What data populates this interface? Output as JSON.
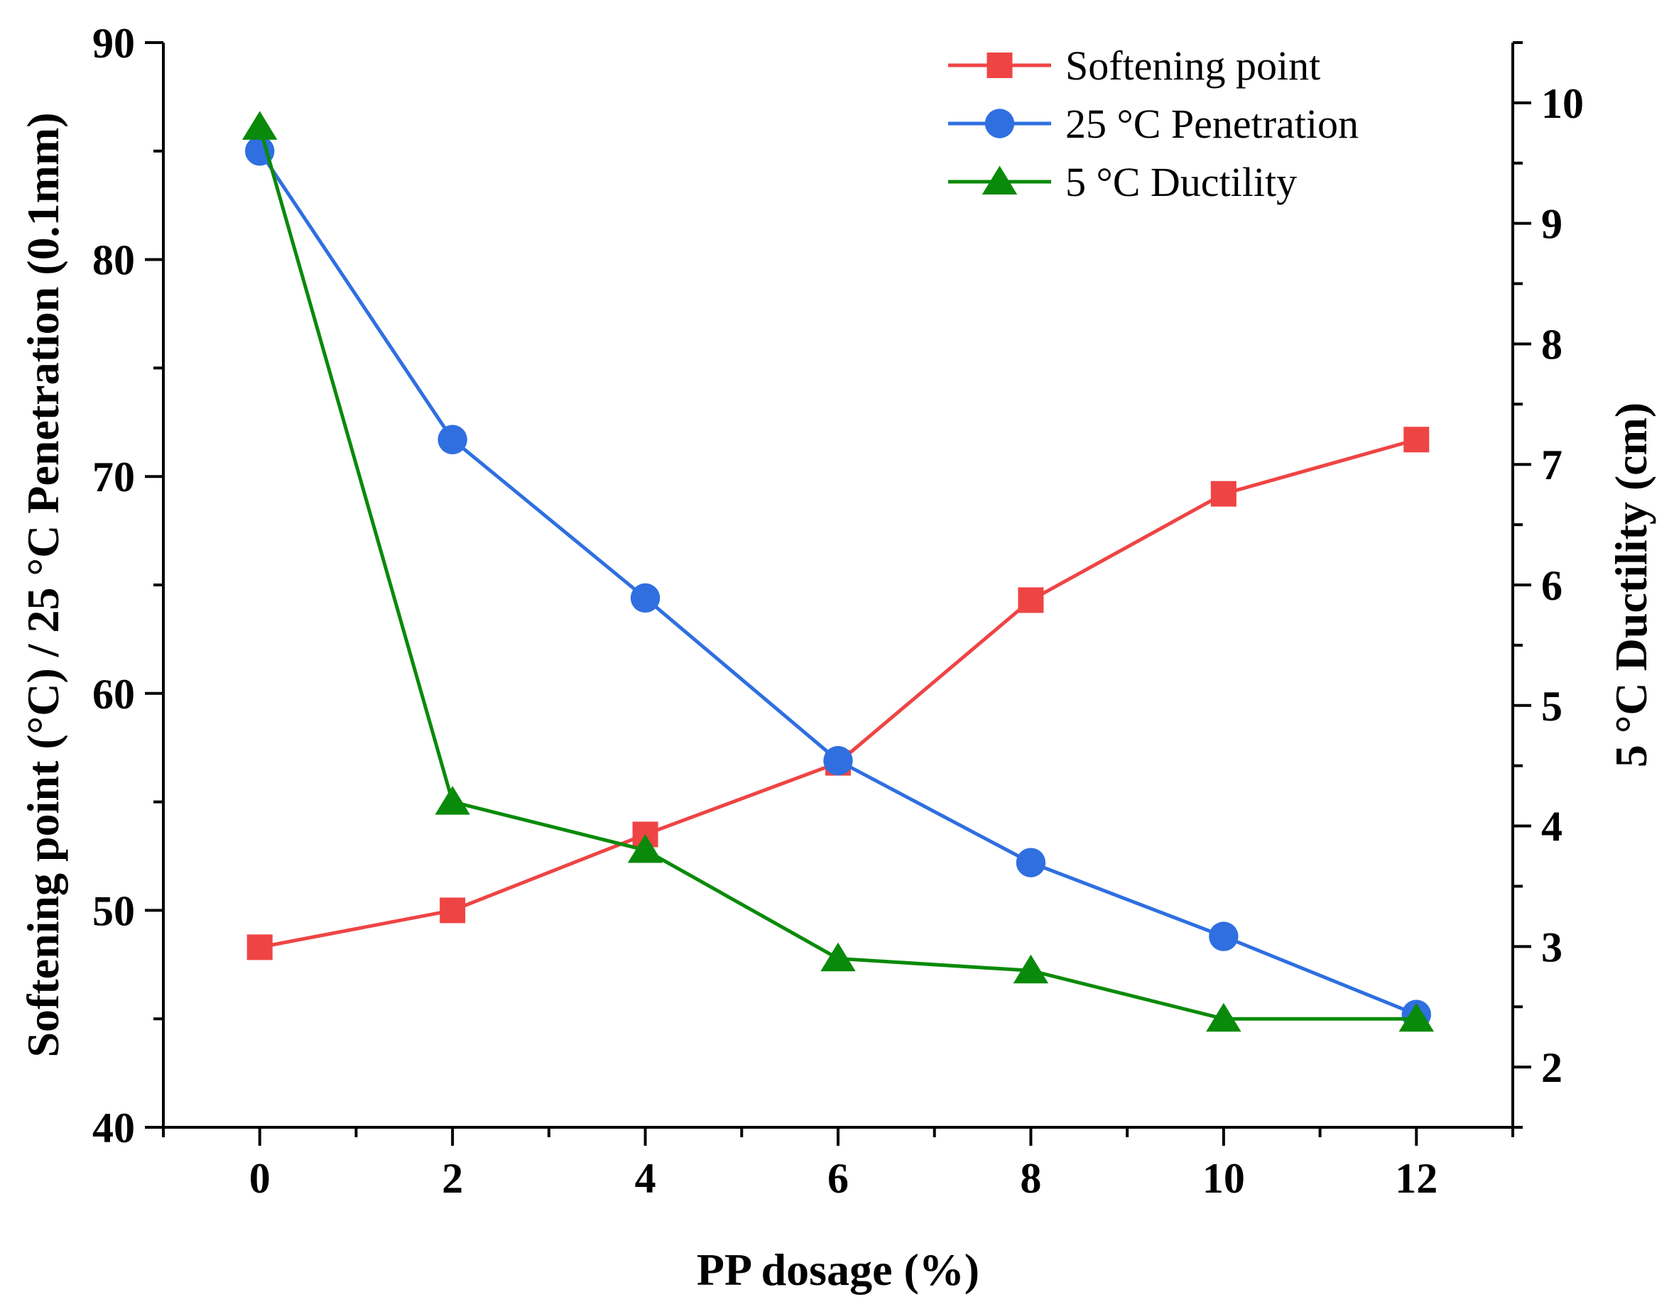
{
  "chart_data": {
    "type": "line",
    "xlabel": "PP dosage (%)",
    "ylabel_left": "Softening point (°C) / 25 °C Penetration (0.1mm)",
    "ylabel_right": "5 °C Ductility (cm)",
    "xlim": [
      -1,
      13
    ],
    "ylim_left": [
      40,
      90
    ],
    "ylim_right": [
      1.5,
      10.5
    ],
    "xticks": [
      0,
      2,
      4,
      6,
      8,
      10,
      12
    ],
    "yticks_left": [
      40,
      50,
      60,
      70,
      80,
      90
    ],
    "yticks_right": [
      2,
      3,
      4,
      5,
      6,
      7,
      8,
      9,
      10
    ],
    "grid": false,
    "legend_position": "top-right",
    "x": [
      0,
      2,
      4,
      6,
      8,
      10,
      12
    ],
    "series": [
      {
        "name": "Softening point",
        "axis": "left",
        "marker": "square",
        "color": "#ef4444",
        "values": [
          48.3,
          50.0,
          53.5,
          56.8,
          64.3,
          69.2,
          71.7
        ]
      },
      {
        "name": "25 °C Penetration",
        "axis": "left",
        "marker": "circle",
        "color": "#2f6fe0",
        "values": [
          85.0,
          71.7,
          64.4,
          56.9,
          52.2,
          48.8,
          45.2
        ]
      },
      {
        "name": "5 °C Ductility",
        "axis": "right",
        "marker": "triangle",
        "color": "#0a8a0a",
        "values": [
          9.8,
          4.2,
          3.8,
          2.9,
          2.8,
          2.4,
          2.4
        ]
      }
    ]
  }
}
